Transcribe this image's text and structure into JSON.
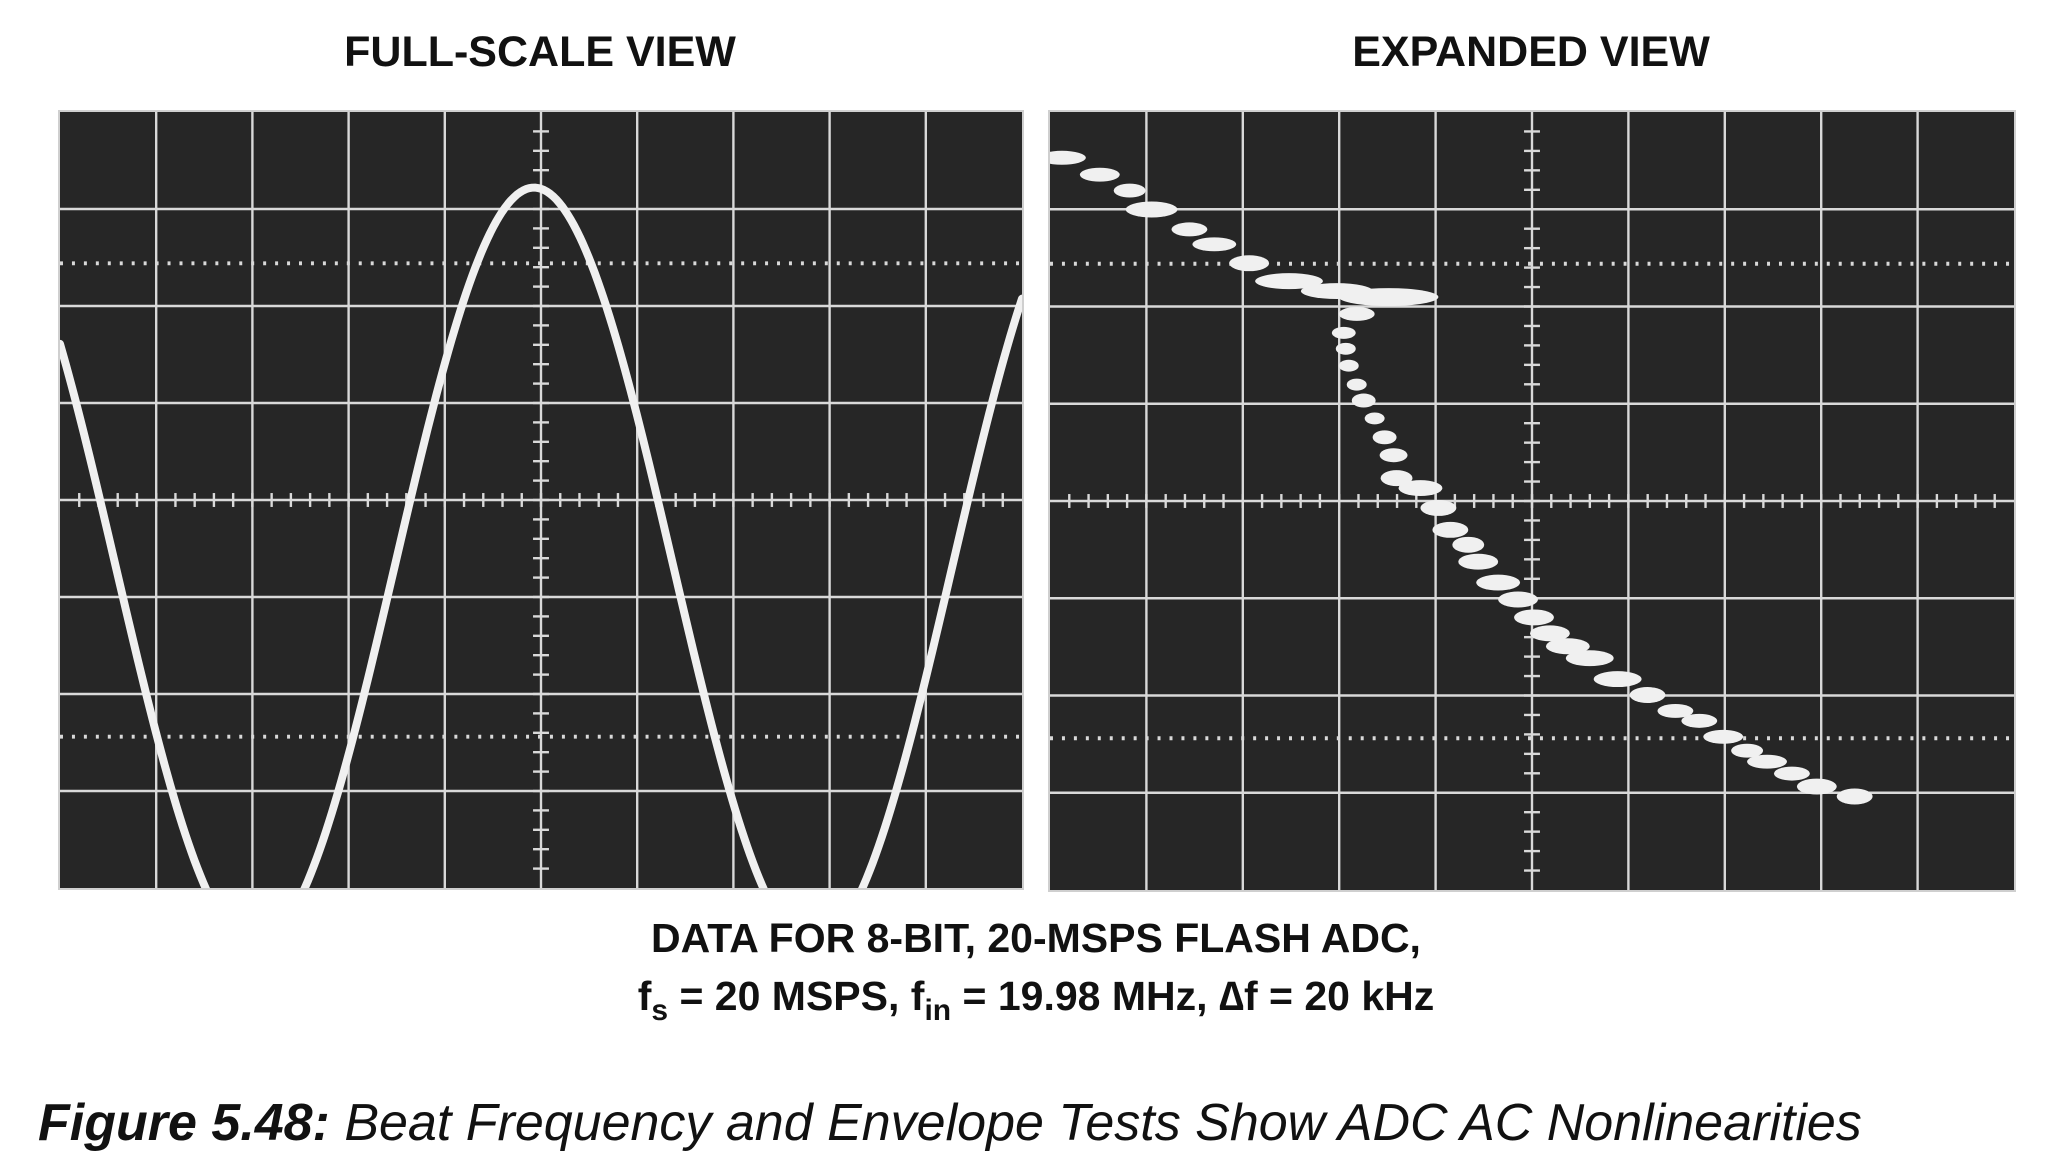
{
  "panels": {
    "left": {
      "title": "FULL-SCALE VIEW"
    },
    "right": {
      "title": "EXPANDED VIEW"
    }
  },
  "caption": {
    "line1": "DATA FOR 8-BIT, 20-MSPS FLASH ADC,",
    "line2": {
      "fs_symbol": "f",
      "fs_sub": "s",
      "fs_value": " = 20 MSPS, ",
      "fin_symbol": "f",
      "fin_sub": "in",
      "fin_value": " = 19.98 MHz, ",
      "df": "∆f = 20 kHz"
    }
  },
  "figure": {
    "label": "Figure 5.48:",
    "title": " Beat Frequency and Envelope Tests Show ADC AC Nonlinearities"
  },
  "colors": {
    "screen": "#262626",
    "grid": "#d9d9d9",
    "trace": "#f0f0f0",
    "text": "#111111"
  }
}
